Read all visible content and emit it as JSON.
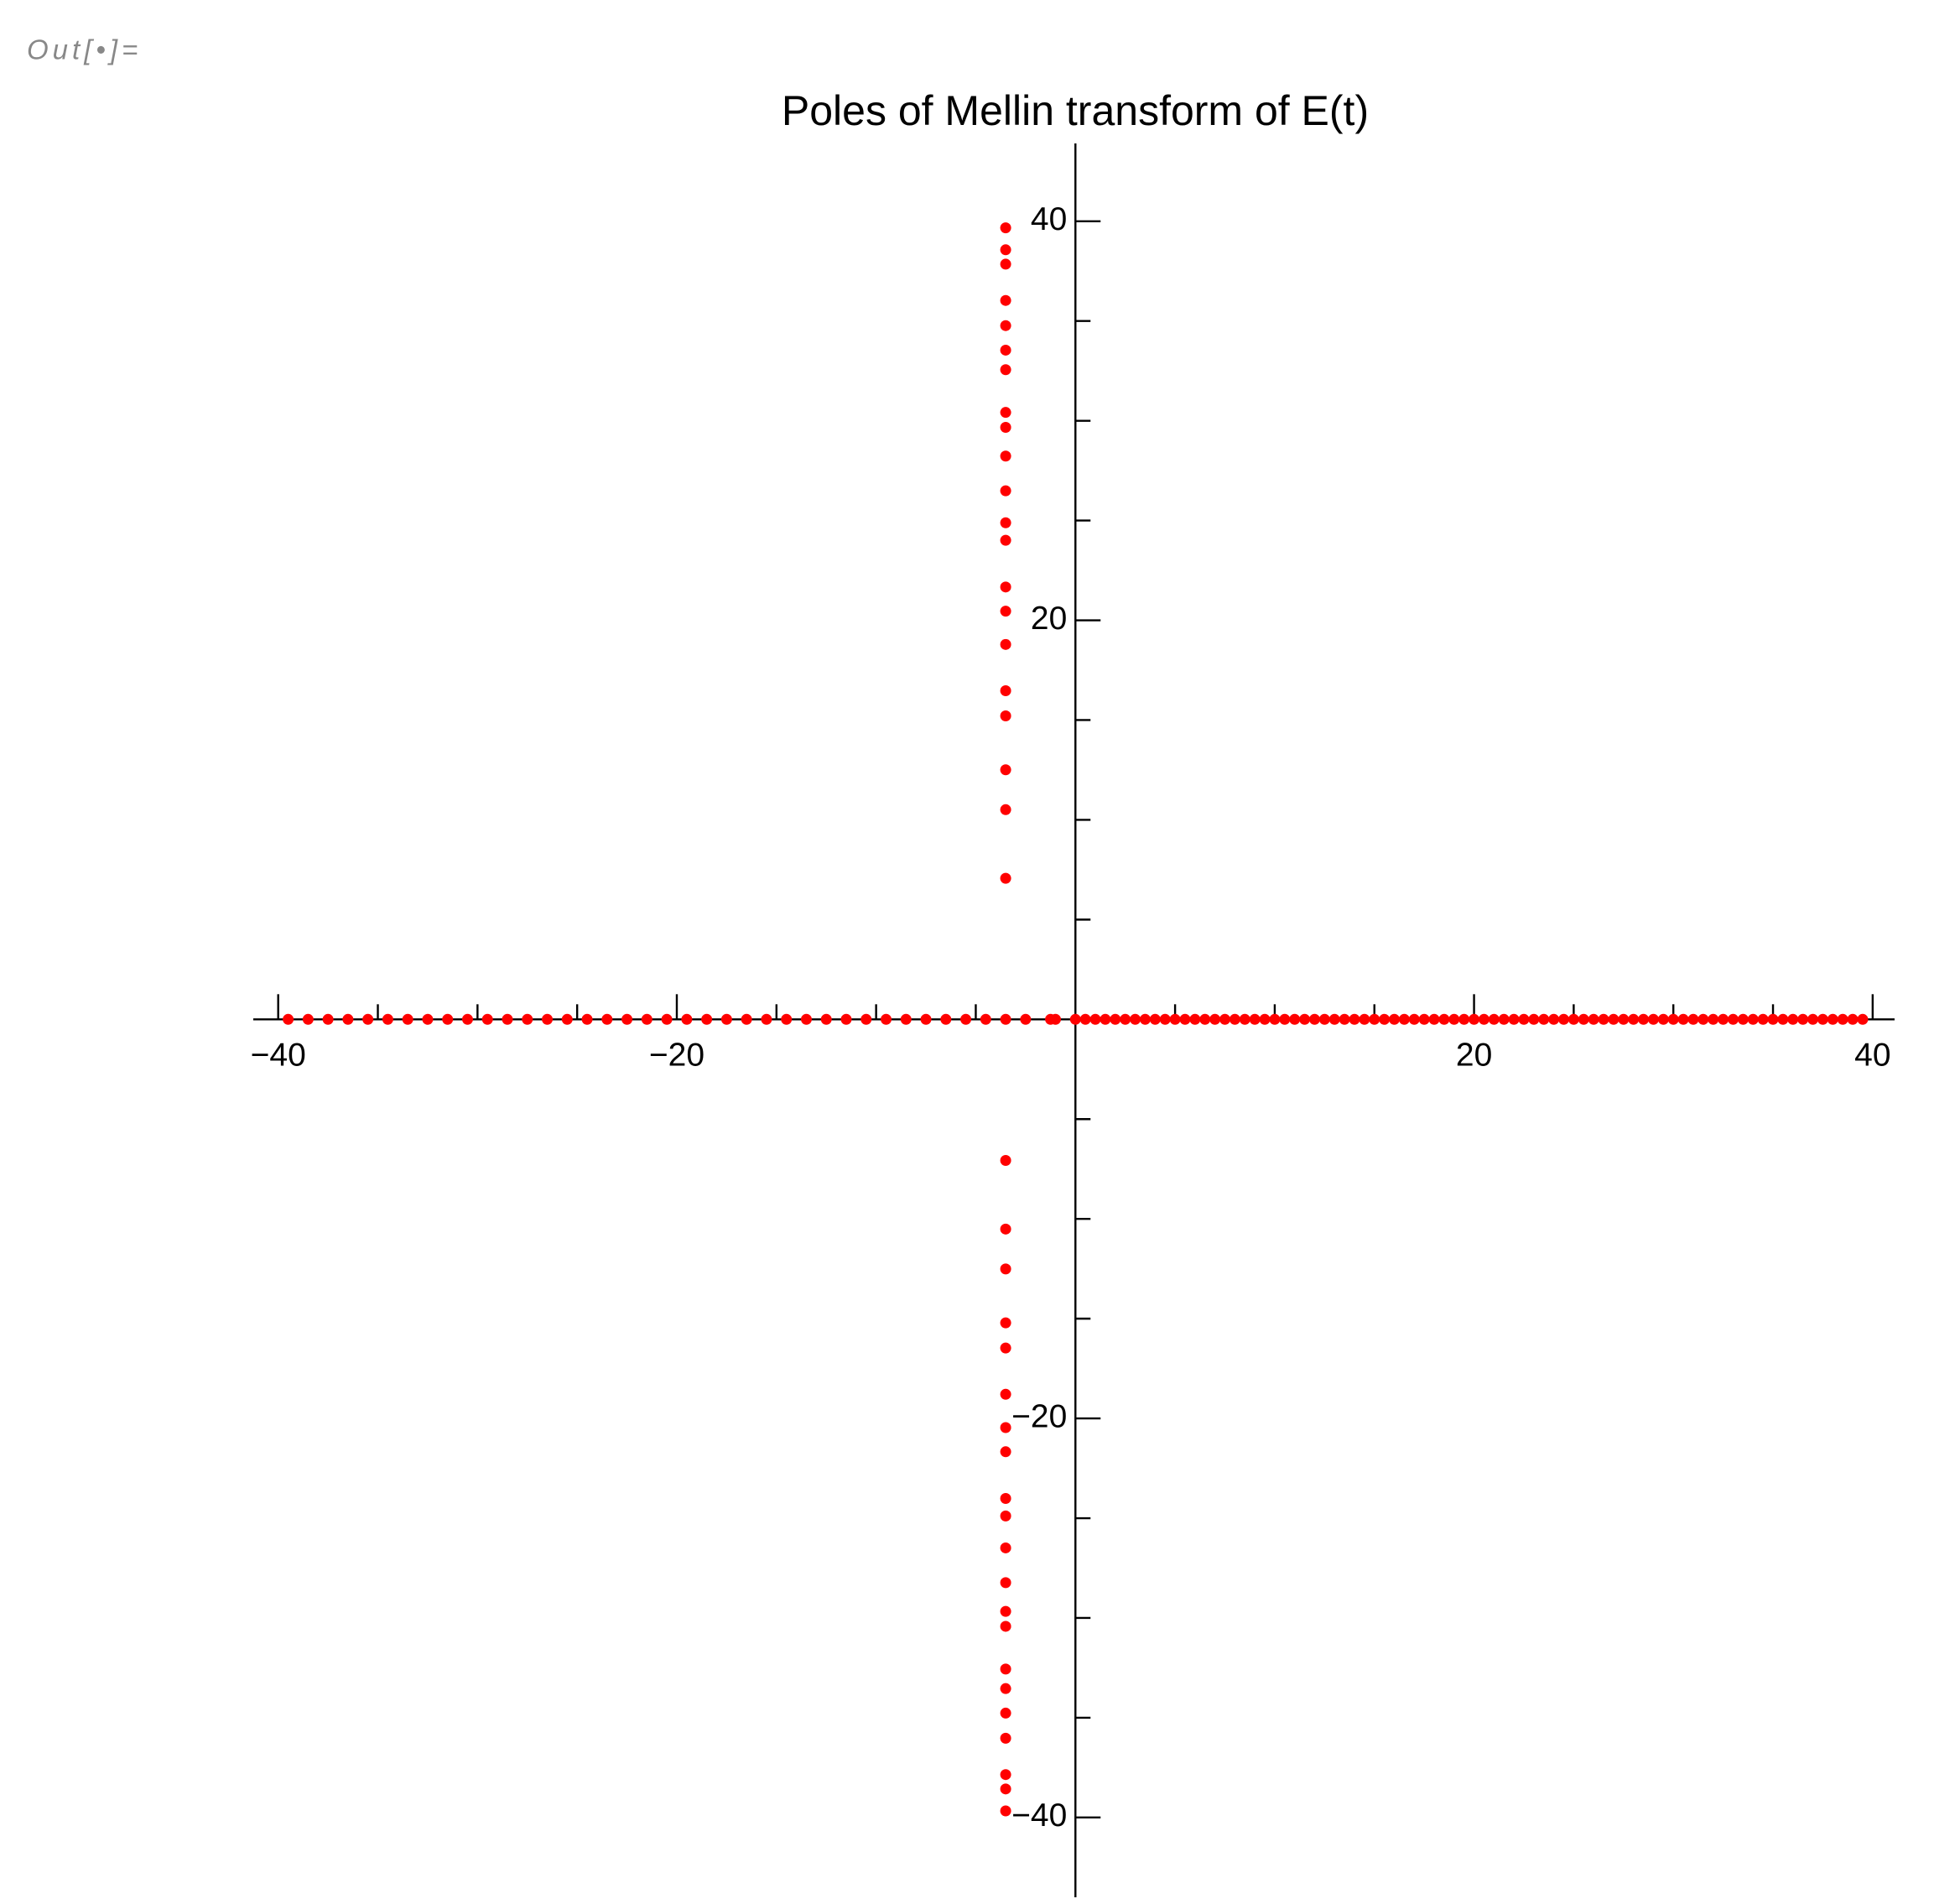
{
  "cell_label": "Out[•]=",
  "chart_data": {
    "type": "scatter",
    "title": "Poles of Mellin transform of E(t)",
    "color": "#ff0000",
    "xlim": [
      -41.25,
      41.1
    ],
    "ylim": [
      -44,
      43.9
    ],
    "xticks": [
      {
        "value": -40,
        "label": "−40"
      },
      {
        "value": -20,
        "label": "−20"
      },
      20,
      40
    ],
    "yticks": [
      {
        "value": -40,
        "label": "−40"
      },
      {
        "value": -20,
        "label": "−20"
      },
      20,
      40
    ],
    "xminorticks": [
      -35,
      -30,
      -25,
      -15,
      -10,
      -5,
      5,
      10,
      15,
      25,
      30,
      35
    ],
    "yminorticks": [
      -35,
      -30,
      -25,
      -15,
      -10,
      -5,
      5,
      10,
      15,
      25,
      30,
      35
    ],
    "x": [
      -39.5,
      -38.5,
      -37.5,
      -36.5,
      -35.5,
      -34.5,
      -33.5,
      -32.5,
      -31.5,
      -30.5,
      -29.5,
      -28.5,
      -27.5,
      -26.5,
      -25.5,
      -24.5,
      -23.5,
      -22.5,
      -21.5,
      -20.5,
      -19.5,
      -18.5,
      -17.5,
      -16.5,
      -15.5,
      -14.5,
      -13.5,
      -12.5,
      -11.5,
      -10.5,
      -9.5,
      -8.5,
      -7.5,
      -6.5,
      -5.5,
      -4.5,
      -3.5,
      -2.5,
      -1.25,
      -1,
      0,
      0.5,
      1,
      1.5,
      2,
      2.5,
      3,
      3.5,
      4,
      4.5,
      5,
      5.5,
      6,
      6.5,
      7,
      7.5,
      8,
      8.5,
      9,
      9.5,
      10,
      10.5,
      11,
      11.5,
      12,
      12.5,
      13,
      13.5,
      14,
      14.5,
      15,
      15.5,
      16,
      16.5,
      17,
      17.5,
      18,
      18.5,
      19,
      19.5,
      20,
      20.5,
      21,
      21.5,
      22,
      22.5,
      23,
      23.5,
      24,
      24.5,
      25,
      25.5,
      26,
      26.5,
      27,
      27.5,
      28,
      28.5,
      29,
      29.5,
      30,
      30.5,
      31,
      31.5,
      32,
      32.5,
      33,
      33.5,
      34,
      34.5,
      35,
      35.5,
      36,
      36.5,
      37,
      37.5,
      38,
      38.5,
      39,
      39.5,
      -3.5,
      -3.5,
      -3.5,
      -3.5,
      -3.5,
      -3.5,
      -3.5,
      -3.5,
      -3.5,
      -3.5,
      -3.5,
      -3.5,
      -3.5,
      -3.5,
      -3.5,
      -3.5,
      -3.5,
      -3.5,
      -3.5,
      -3.5,
      -3.5,
      -3.5,
      -3.5,
      -3.5,
      -3.5,
      -3.5,
      -3.5,
      -3.5,
      -3.5,
      -3.5,
      -3.5,
      -3.5,
      -3.5,
      -3.5,
      -3.5,
      -3.5,
      -3.5,
      -3.5,
      -3.5,
      -3.5,
      -3.5,
      -3.5
    ],
    "y": [
      0,
      0,
      0,
      0,
      0,
      0,
      0,
      0,
      0,
      0,
      0,
      0,
      0,
      0,
      0,
      0,
      0,
      0,
      0,
      0,
      0,
      0,
      0,
      0,
      0,
      0,
      0,
      0,
      0,
      0,
      0,
      0,
      0,
      0,
      0,
      0,
      0,
      0,
      0,
      0,
      0,
      0,
      0,
      0,
      0,
      0,
      0,
      0,
      0,
      0,
      0,
      0,
      0,
      0,
      0,
      0,
      0,
      0,
      0,
      0,
      0,
      0,
      0,
      0,
      0,
      0,
      0,
      0,
      0,
      0,
      0,
      0,
      0,
      0,
      0,
      0,
      0,
      0,
      0,
      0,
      0,
      0,
      0,
      0,
      0,
      0,
      0,
      0,
      0,
      0,
      0,
      0,
      0,
      0,
      0,
      0,
      0,
      0,
      0,
      0,
      0,
      0,
      0,
      0,
      0,
      0,
      0,
      0,
      0,
      0,
      0,
      0,
      0,
      0,
      0,
      0,
      0,
      0,
      0,
      0,
      7.07,
      10.51,
      12.51,
      15.21,
      16.47,
      18.79,
      20.46,
      21.67,
      24.01,
      24.89,
      26.49,
      28.23,
      29.67,
      30.42,
      32.56,
      33.54,
      34.77,
      36.03,
      37.85,
      38.57,
      39.67,
      -7.07,
      -10.51,
      -12.51,
      -15.21,
      -16.47,
      -18.79,
      -20.46,
      -21.67,
      -24.01,
      -24.89,
      -26.49,
      -28.23,
      -29.67,
      -30.42,
      -32.56,
      -33.54,
      -34.77,
      -36.03,
      -37.85,
      -38.57,
      -39.67
    ]
  }
}
